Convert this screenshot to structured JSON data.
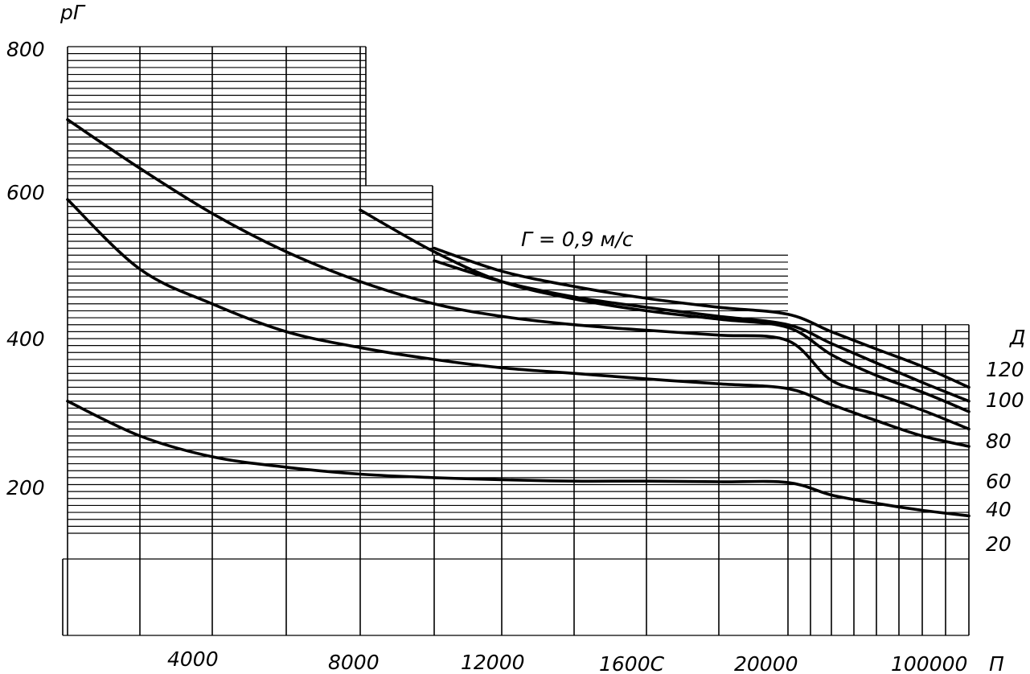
{
  "chart_data": {
    "type": "line",
    "ylabel": "pГ",
    "xlabel": "П",
    "legend_title": "Д",
    "annotation": "Г = 0,9 м/с",
    "y_ticks": [
      "800",
      "600",
      "400",
      "200"
    ],
    "x_ticks": [
      "4000",
      "8000",
      "12000",
      "1600С",
      "20000",
      "100000"
    ],
    "ylim": [
      100,
      800
    ],
    "x": [
      0,
      2000,
      4000,
      6000,
      8000,
      10000,
      12000,
      14000,
      16000,
      18000,
      20000,
      40000,
      60000,
      80000,
      100000
    ],
    "series": [
      {
        "name": "120",
        "values": [
          null,
          null,
          null,
          null,
          null,
          510,
          477,
          455,
          438,
          425,
          415,
          390,
          365,
          340,
          310
        ]
      },
      {
        "name": "100",
        "values": [
          null,
          null,
          null,
          null,
          null,
          492,
          462,
          440,
          425,
          412,
          400,
          373,
          345,
          317,
          290
        ]
      },
      {
        "name": "80",
        "values": [
          null,
          null,
          null,
          null,
          565,
          505,
          462,
          437,
          420,
          408,
          396,
          357,
          327,
          303,
          275
        ]
      },
      {
        "name": "60",
        "values": [
          695,
          625,
          560,
          505,
          462,
          430,
          412,
          400,
          392,
          385,
          377,
          320,
          300,
          277,
          250
        ]
      },
      {
        "name": "40",
        "values": [
          580,
          480,
          430,
          390,
          367,
          350,
          338,
          330,
          322,
          315,
          308,
          285,
          262,
          240,
          225
        ]
      },
      {
        "name": "20",
        "values": [
          290,
          240,
          210,
          195,
          185,
          180,
          177,
          175,
          175,
          174,
          173,
          155,
          143,
          133,
          125
        ]
      }
    ]
  }
}
